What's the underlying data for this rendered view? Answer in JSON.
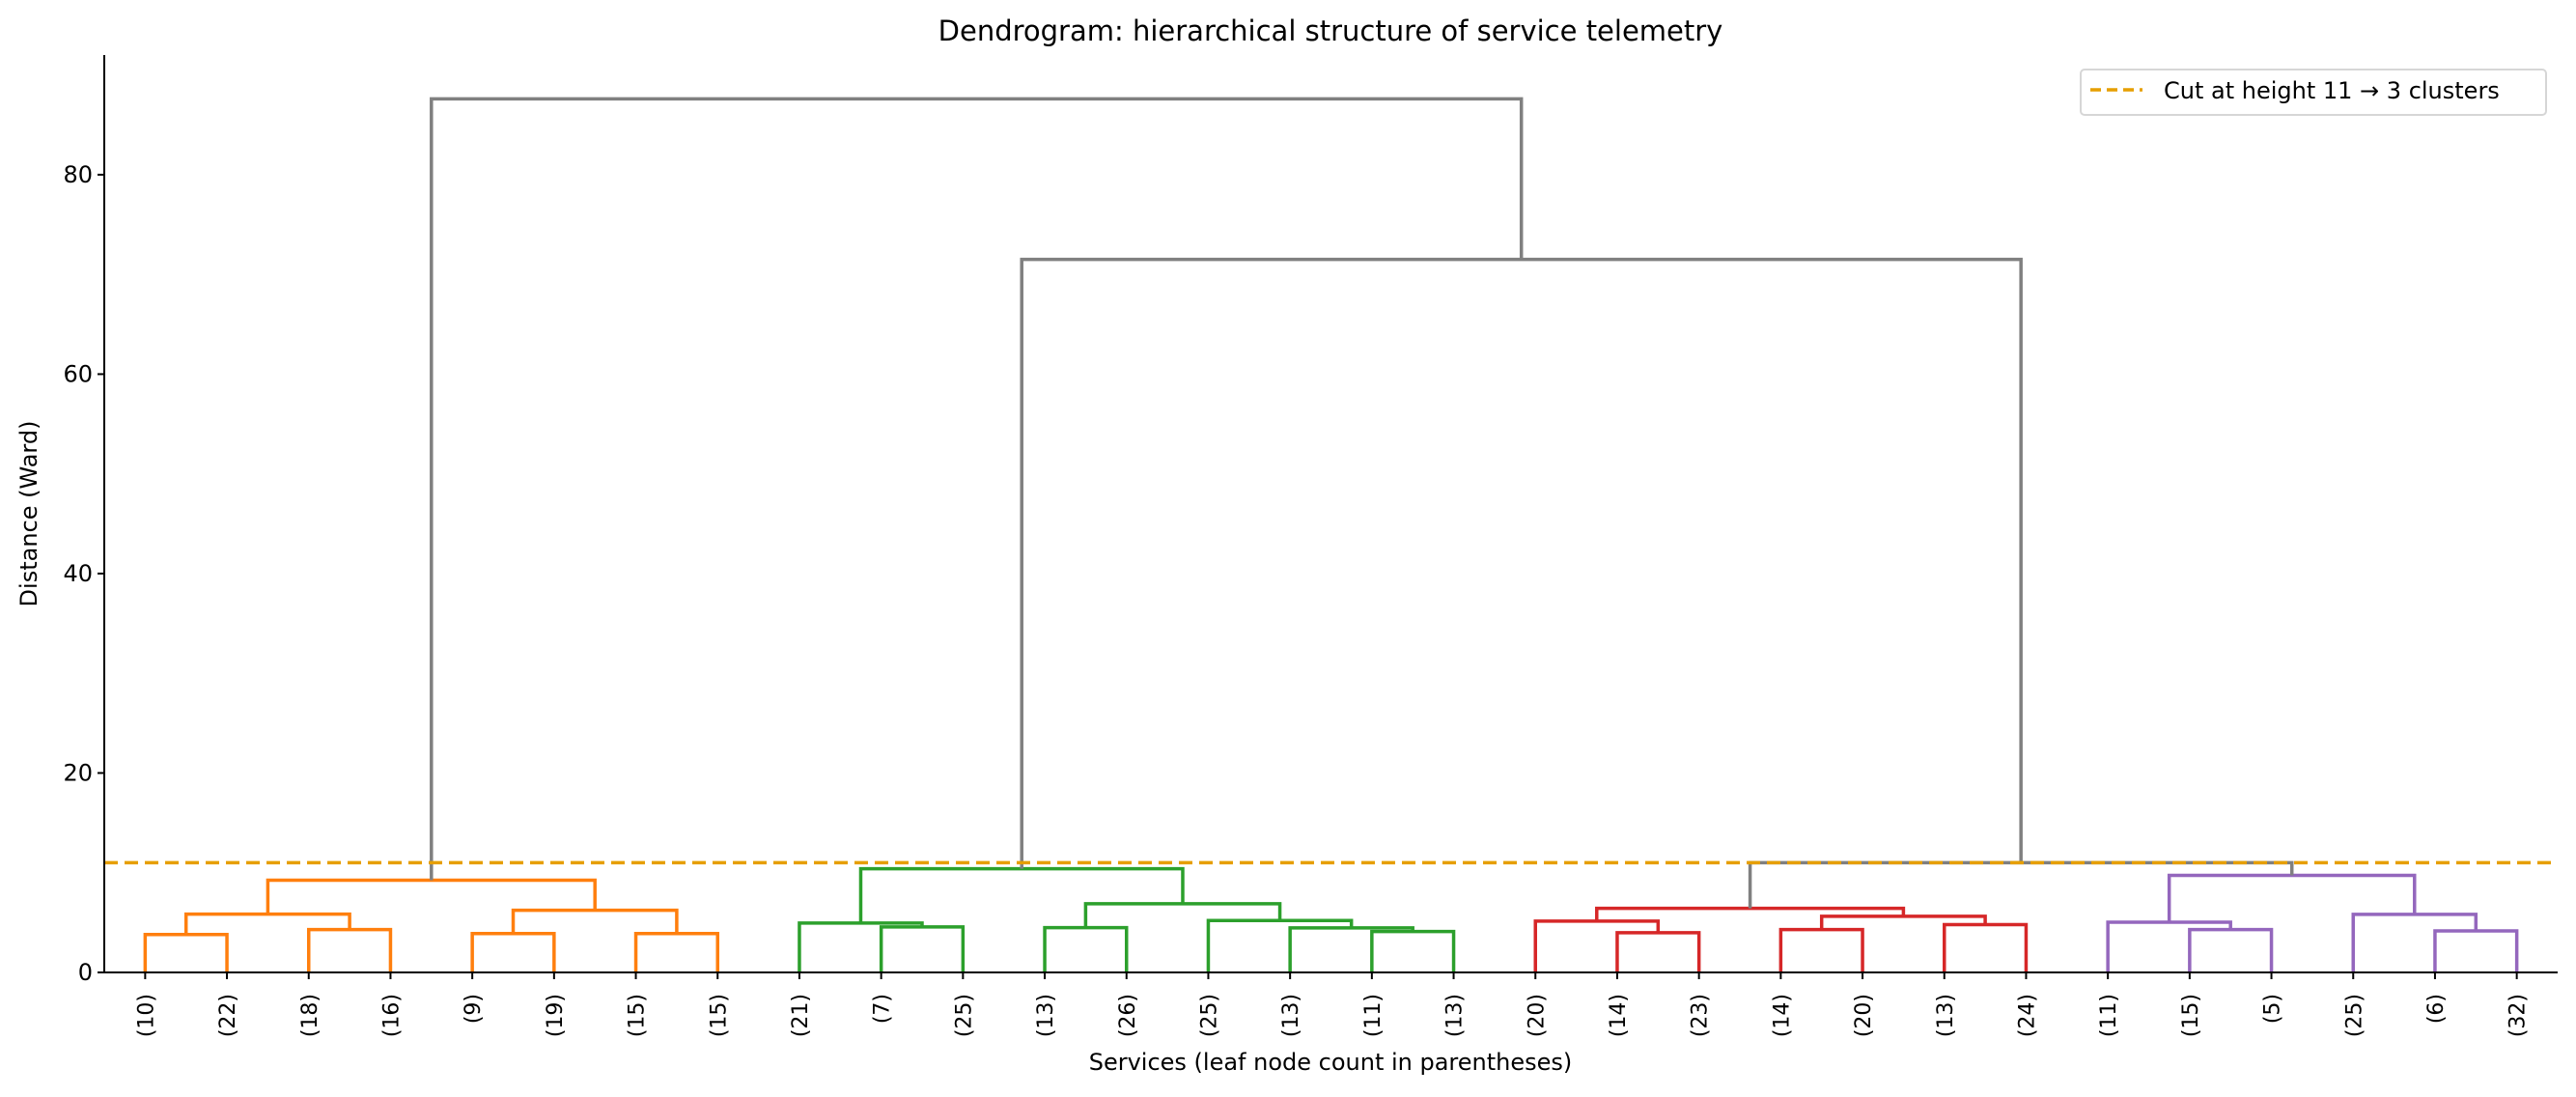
{
  "chart_data": {
    "type": "dendrogram",
    "title": "Dendrogram: hierarchical structure of service telemetry",
    "xlabel": "Services (leaf node count in parentheses)",
    "ylabel": "Distance (Ward)",
    "ylim": [
      0,
      92
    ],
    "yticks": [
      0,
      20,
      40,
      60,
      80
    ],
    "grid": false,
    "legend": {
      "placement": "top-right",
      "entries": [
        {
          "label": "Cut at height 11 → 3 clusters",
          "color": "#e69f00",
          "style": "dashed"
        }
      ]
    },
    "cut_height": 11,
    "colors": {
      "orange": "#ff7f0e",
      "green": "#2ca02c",
      "red": "#d62728",
      "purple": "#9467bd",
      "above": "#808080",
      "cut": "#e69f00"
    },
    "leaves": [
      "(10)",
      "(22)",
      "(18)",
      "(16)",
      "(9)",
      "(19)",
      "(15)",
      "(15)",
      "(21)",
      "(7)",
      "(25)",
      "(13)",
      "(26)",
      "(25)",
      "(13)",
      "(11)",
      "(13)",
      "(20)",
      "(14)",
      "(23)",
      "(14)",
      "(20)",
      "(13)",
      "(24)",
      "(11)",
      "(15)",
      "(5)",
      "(25)",
      "(6)",
      "(32)"
    ],
    "tree": {
      "h": 87.6,
      "c": "above",
      "ch": [
        {
          "h": 9.25,
          "c": "orange",
          "ch": [
            {
              "h": 5.85,
              "c": "orange",
              "ch": [
                {
                  "h": 3.8,
                  "c": "orange",
                  "ch": [
                    0,
                    1
                  ]
                },
                {
                  "h": 4.3,
                  "c": "orange",
                  "ch": [
                    2,
                    3
                  ]
                }
              ]
            },
            {
              "h": 6.24,
              "c": "orange",
              "ch": [
                {
                  "h": 3.9,
                  "c": "orange",
                  "ch": [
                    4,
                    5
                  ]
                },
                {
                  "h": 3.9,
                  "c": "orange",
                  "ch": [
                    6,
                    7
                  ]
                }
              ]
            }
          ]
        },
        {
          "h": 71.5,
          "c": "above",
          "ch": [
            {
              "h": 10.4,
              "c": "green",
              "ch": [
                {
                  "h": 4.95,
                  "c": "green",
                  "ch": [
                    8,
                    {
                      "h": 4.56,
                      "c": "green",
                      "ch": [
                        9,
                        10
                      ]
                    }
                  ]
                },
                {
                  "h": 6.89,
                  "c": "green",
                  "ch": [
                    {
                      "h": 4.49,
                      "c": "green",
                      "ch": [
                        11,
                        12
                      ]
                    },
                    {
                      "h": 5.2,
                      "c": "green",
                      "ch": [
                        13,
                        {
                          "h": 4.47,
                          "c": "green",
                          "ch": [
                            14,
                            {
                              "h": 4.1,
                              "c": "green",
                              "ch": [
                                15,
                                16
                              ]
                            }
                          ]
                        }
                      ]
                    }
                  ]
                }
              ]
            },
            {
              "h": 11.0,
              "c": "above",
              "ch": [
                {
                  "h": 6.43,
                  "c": "red",
                  "ch": [
                    {
                      "h": 5.14,
                      "c": "red",
                      "ch": [
                        17,
                        {
                          "h": 3.98,
                          "c": "red",
                          "ch": [
                            18,
                            19
                          ]
                        }
                      ]
                    },
                    {
                      "h": 5.63,
                      "c": "red",
                      "ch": [
                        {
                          "h": 4.3,
                          "c": "red",
                          "ch": [
                            20,
                            21
                          ]
                        },
                        {
                          "h": 4.79,
                          "c": "red",
                          "ch": [
                            22,
                            23
                          ]
                        }
                      ]
                    }
                  ]
                },
                {
                  "h": 9.73,
                  "c": "purple",
                  "ch": [
                    {
                      "h": 5.04,
                      "c": "purple",
                      "ch": [
                        24,
                        {
                          "h": 4.3,
                          "c": "purple",
                          "ch": [
                            25,
                            26
                          ]
                        }
                      ]
                    },
                    {
                      "h": 5.82,
                      "c": "purple",
                      "ch": [
                        27,
                        {
                          "h": 4.17,
                          "c": "purple",
                          "ch": [
                            28,
                            29
                          ]
                        }
                      ]
                    }
                  ]
                }
              ]
            }
          ]
        }
      ]
    }
  }
}
